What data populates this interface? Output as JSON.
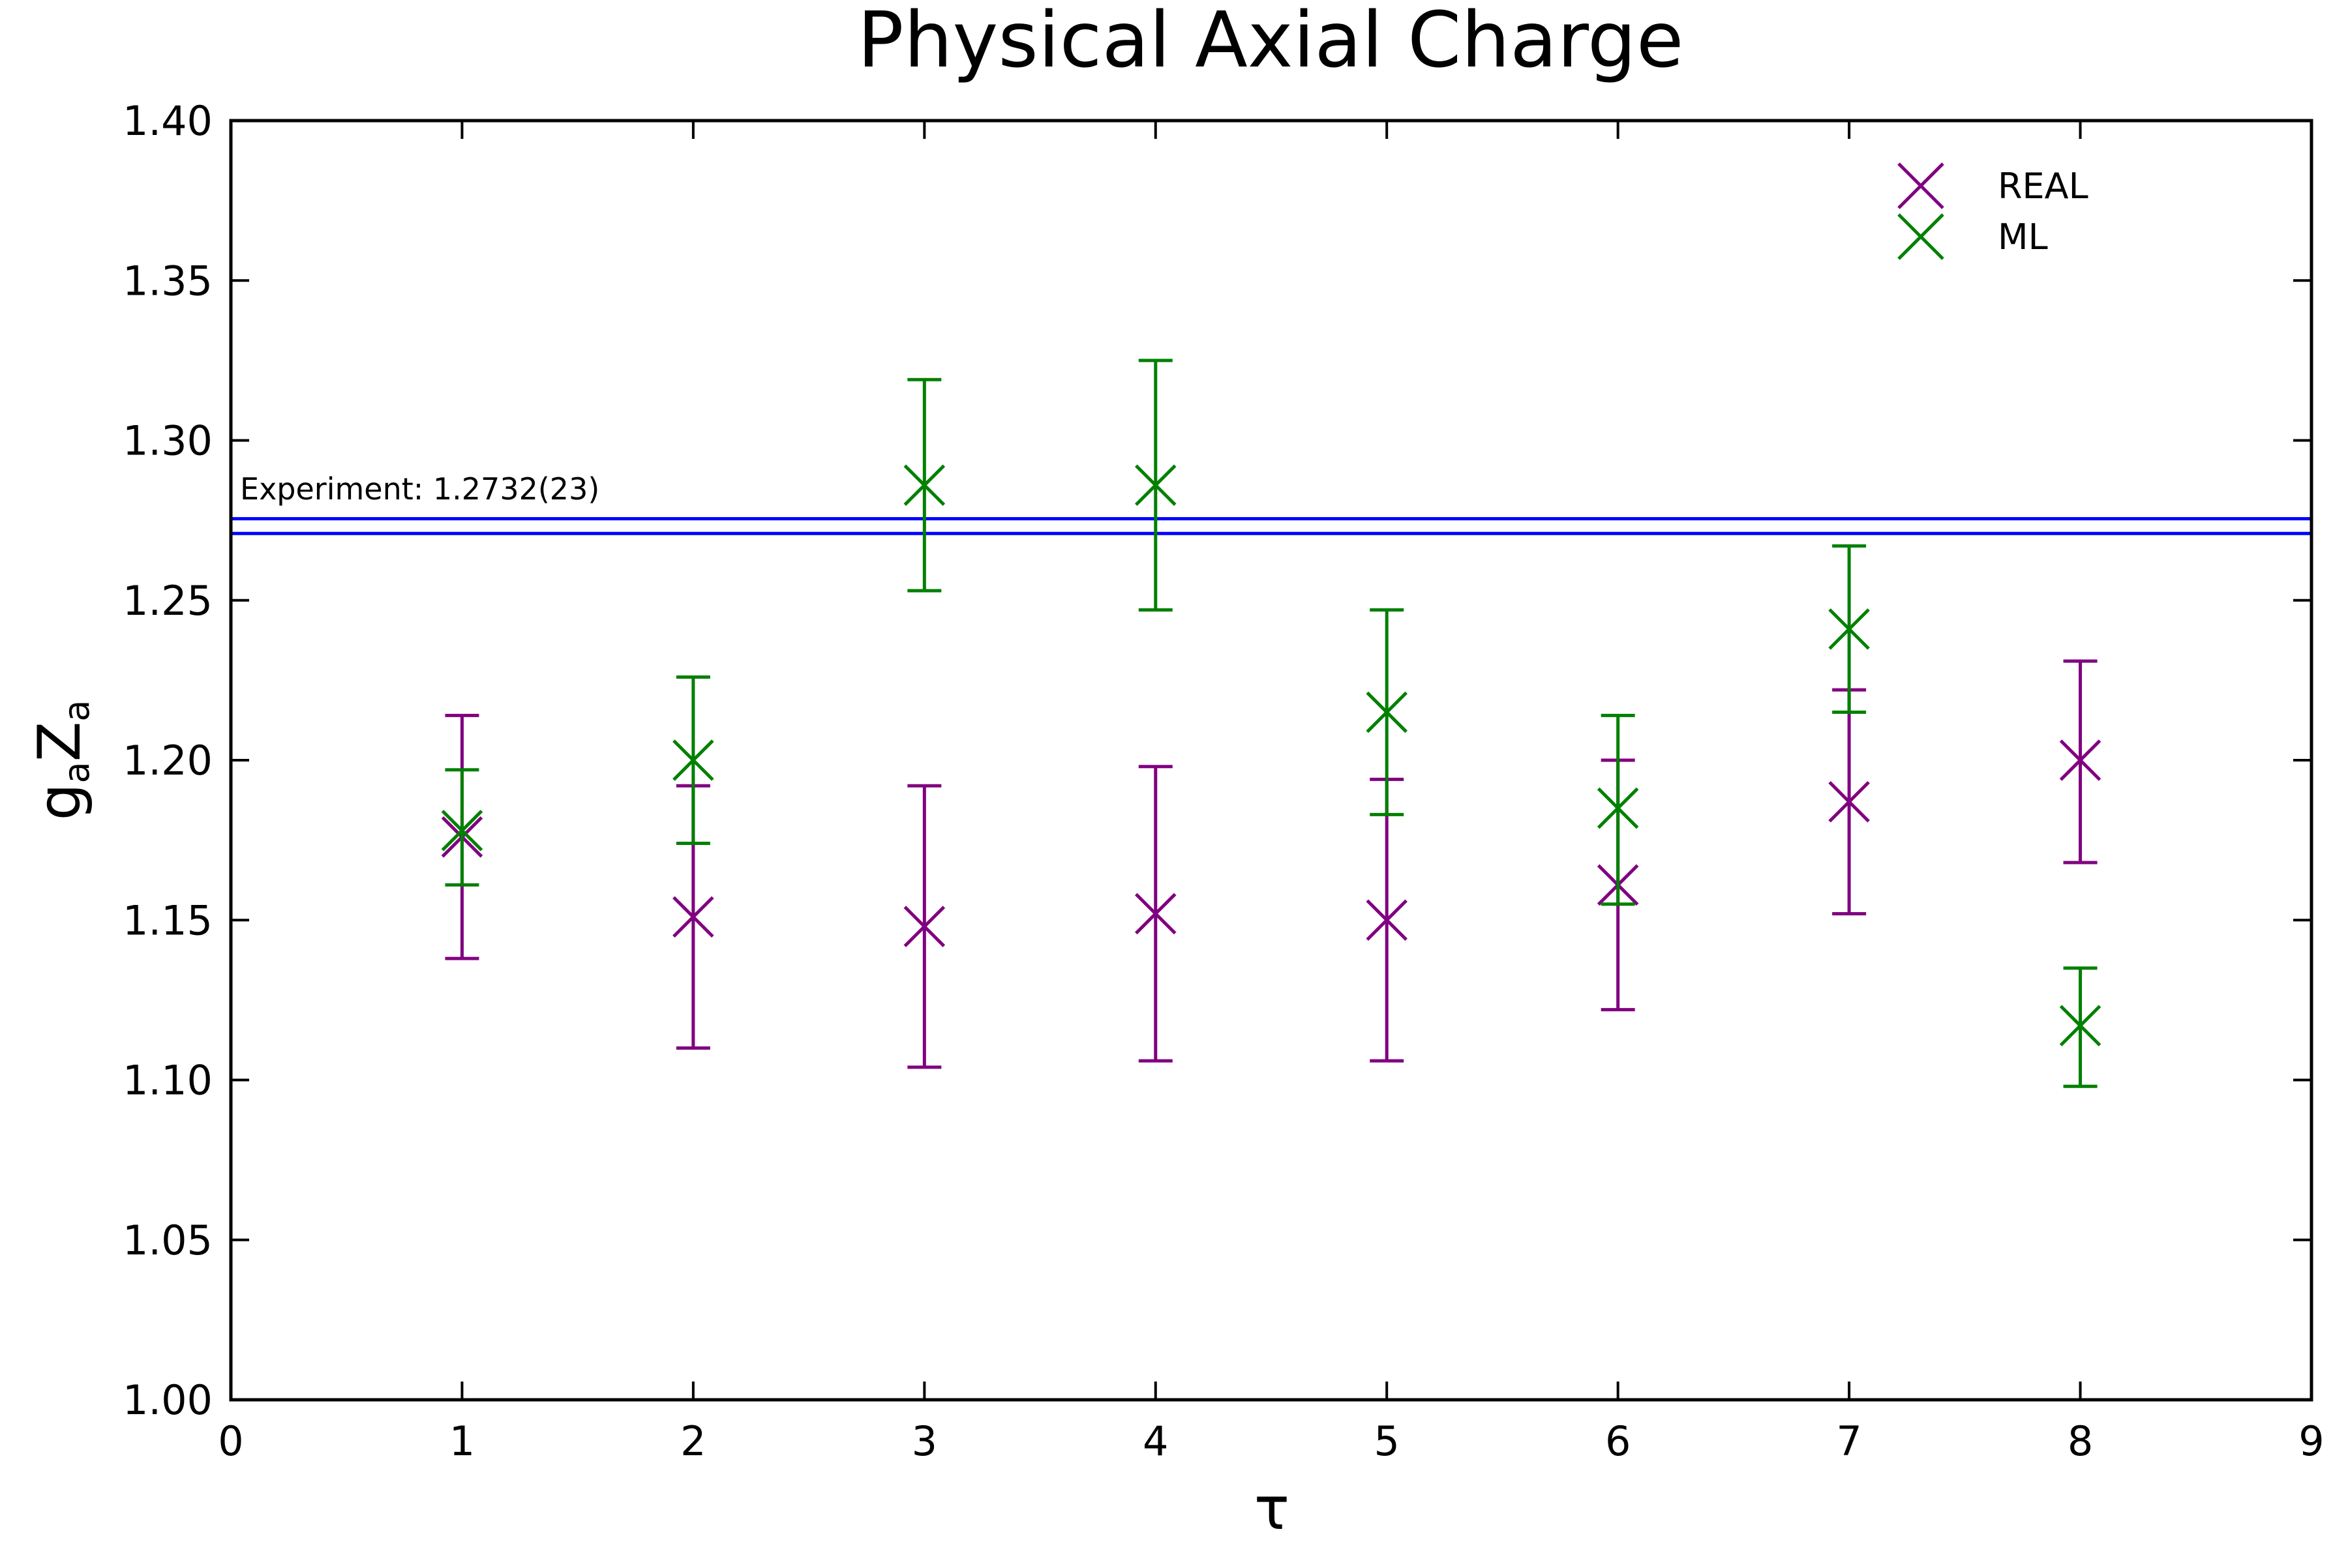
{
  "chart_data": {
    "type": "scatter",
    "title": "Physical Axial Charge",
    "xlabel": "τ",
    "ylabel": {
      "main": "g",
      "sub1": "a",
      "mid": "Z",
      "sub2": "a"
    },
    "xlim": [
      0,
      9
    ],
    "ylim": [
      1.0,
      1.4
    ],
    "x_ticks": [
      0,
      1,
      2,
      3,
      4,
      5,
      6,
      7,
      8,
      9
    ],
    "y_ticks": [
      "1.00",
      "1.05",
      "1.10",
      "1.15",
      "1.20",
      "1.25",
      "1.30",
      "1.35",
      "1.40"
    ],
    "grid": false,
    "legend_position": "top-right",
    "series": [
      {
        "name": "REAL",
        "color": "#800080",
        "marker": "x",
        "x": [
          1,
          2,
          3,
          4,
          5,
          6,
          7,
          8
        ],
        "y": [
          1.176,
          1.151,
          1.148,
          1.152,
          1.15,
          1.161,
          1.187,
          1.2
        ],
        "err_low": [
          1.138,
          1.11,
          1.104,
          1.106,
          1.106,
          1.122,
          1.152,
          1.168
        ],
        "err_high": [
          1.214,
          1.192,
          1.192,
          1.198,
          1.194,
          1.2,
          1.222,
          1.231
        ]
      },
      {
        "name": "ML",
        "color": "#008000",
        "marker": "x",
        "x": [
          1,
          2,
          3,
          4,
          5,
          6,
          7,
          8
        ],
        "y": [
          1.178,
          1.2,
          1.286,
          1.286,
          1.215,
          1.185,
          1.241,
          1.117
        ],
        "err_low": [
          1.161,
          1.174,
          1.253,
          1.247,
          1.183,
          1.155,
          1.215,
          1.098
        ],
        "err_high": [
          1.197,
          1.226,
          1.319,
          1.325,
          1.247,
          1.214,
          1.267,
          1.135
        ]
      }
    ],
    "experiment": {
      "label": "Experiment: 1.2732(23)",
      "value": 1.2732,
      "band": [
        1.2709,
        1.2755
      ],
      "color": "#0000ff"
    }
  }
}
